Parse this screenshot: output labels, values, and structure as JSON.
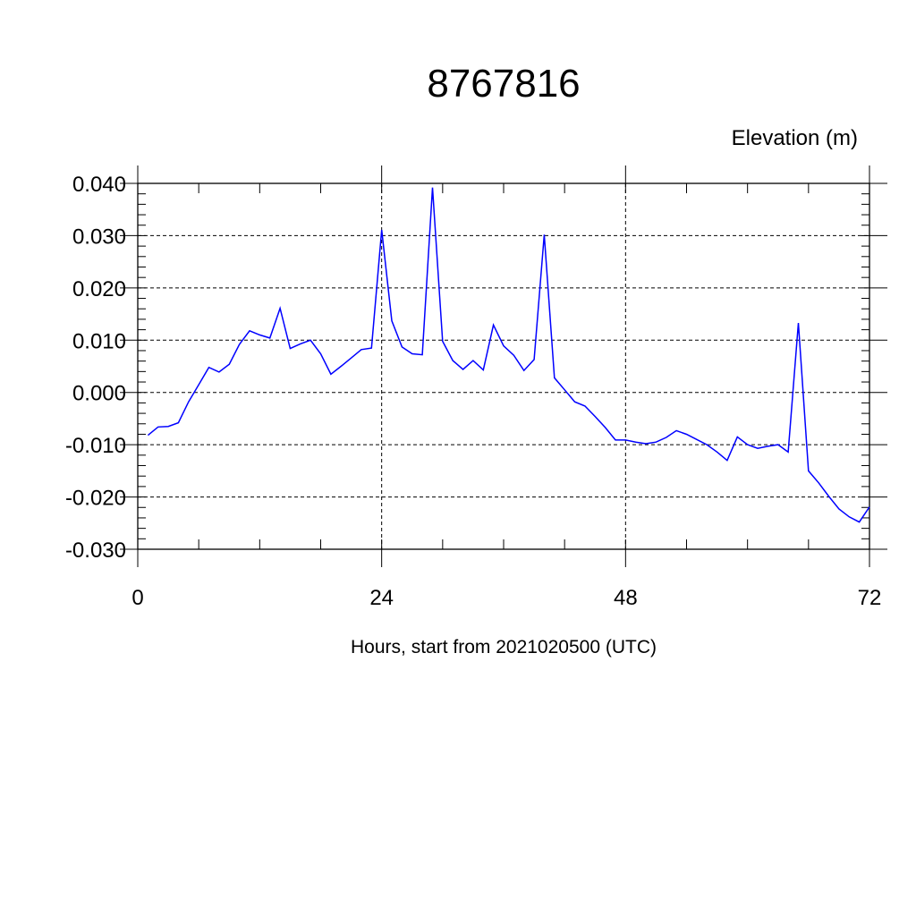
{
  "chart_data": {
    "type": "line",
    "title": "8767816",
    "subtitle": "Elevation (m)",
    "xlabel": "Hours, start from 2021020500 (UTC)",
    "ylabel": "",
    "xlim": [
      0,
      72
    ],
    "ylim": [
      -0.03,
      0.04
    ],
    "x_ticks": [
      0,
      24,
      48,
      72
    ],
    "x_tick_labels": [
      "0",
      "24",
      "48",
      "72"
    ],
    "x_minor_step": 6,
    "y_ticks": [
      -0.03,
      -0.02,
      -0.01,
      0.0,
      0.01,
      0.02,
      0.03,
      0.04
    ],
    "y_tick_labels": [
      "-0.030",
      "-0.020",
      "-0.010",
      "0.000",
      "0.010",
      "0.020",
      "0.030",
      "0.040"
    ],
    "y_minor_step": 0.002,
    "grid": true,
    "line_color": "#0000ff",
    "series": [
      {
        "x": [
          1,
          2,
          3,
          4,
          5,
          6,
          7,
          8,
          9,
          10,
          11,
          12,
          13,
          14,
          15,
          16,
          17,
          18,
          19,
          20,
          21,
          22,
          23,
          24,
          25,
          26,
          27,
          28,
          29,
          30,
          31,
          32,
          33,
          34,
          35,
          36,
          37,
          38,
          39,
          40,
          41,
          42,
          43,
          44,
          45,
          46,
          47,
          48,
          49,
          50,
          51,
          52,
          53,
          54,
          55,
          56,
          57,
          58,
          59,
          60,
          61,
          62,
          63,
          64,
          65,
          66,
          67,
          68,
          69,
          70,
          71,
          72
        ],
        "values": [
          -0.0082,
          -0.0066,
          -0.0065,
          -0.0058,
          -0.0018,
          0.0015,
          0.0048,
          0.0039,
          0.0054,
          0.0092,
          0.0118,
          0.011,
          0.0104,
          0.0161,
          0.0084,
          0.0093,
          0.01,
          0.0074,
          0.0035,
          0.005,
          0.0066,
          0.0082,
          0.0085,
          0.0311,
          0.0137,
          0.0087,
          0.0074,
          0.0072,
          0.0392,
          0.0098,
          0.0061,
          0.0044,
          0.0061,
          0.0043,
          0.0129,
          0.0089,
          0.0071,
          0.0042,
          0.0063,
          0.0302,
          0.0028,
          0.0005,
          -0.0018,
          -0.0026,
          -0.0046,
          -0.0067,
          -0.0091,
          -0.0091,
          -0.0095,
          -0.0098,
          -0.0095,
          -0.0086,
          -0.0073,
          -0.008,
          -0.009,
          -0.01,
          -0.0114,
          -0.013,
          -0.0085,
          -0.01,
          -0.0107,
          -0.0103,
          -0.01,
          -0.0114,
          0.0133,
          -0.015,
          -0.0173,
          -0.0199,
          -0.0223,
          -0.0238,
          -0.0248,
          -0.0219
        ]
      }
    ]
  }
}
